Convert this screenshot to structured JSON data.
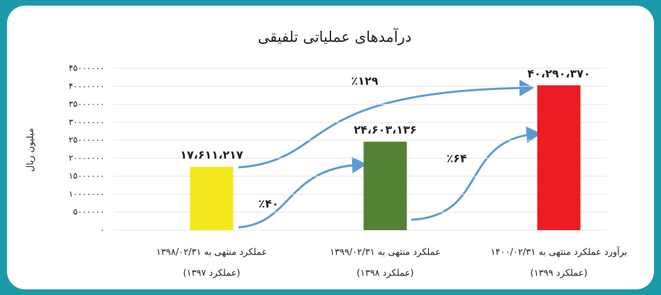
{
  "chart_data": {
    "type": "bar",
    "title": "درآمدهای عملیاتی تلفیقی",
    "y_label": "میلیون ریال",
    "categories": [
      "عملکرد منتهی به ۱۳۹۸/۰۲/۳۱",
      "عملکرد منتهی به ۱۳۹۹/۰۲/۳۱",
      "برآورد عملکرد منتهی به ۱۴۰۰/۰۲/۳۱"
    ],
    "category_notes": [
      "(عملکرد ۱۳۹۷)",
      "(عملکرد ۱۳۹۸)",
      "(عملکرد ۱۳۹۹)"
    ],
    "values": [
      17611217,
      24603136,
      40290370
    ],
    "value_labels": [
      "۱۷،۶۱۱،۲۱۷",
      "۲۴،۶۰۳،۱۳۶",
      "۴۰،۲۹۰،۳۷۰"
    ],
    "colors": [
      "#f2e81c",
      "#548235",
      "#ed1c24"
    ],
    "ylim": [
      0,
      45000000
    ],
    "yticks": [
      {
        "value": 0,
        "label": "۰"
      },
      {
        "value": 5000000,
        "label": "۵۰۰۰۰۰۰"
      },
      {
        "value": 10000000,
        "label": "۱۰۰۰۰۰۰۰"
      },
      {
        "value": 15000000,
        "label": "۱۵۰۰۰۰۰۰"
      },
      {
        "value": 20000000,
        "label": "۲۰۰۰۰۰۰۰"
      },
      {
        "value": 25000000,
        "label": "۲۵۰۰۰۰۰۰"
      },
      {
        "value": 30000000,
        "label": "۳۰۰۰۰۰۰۰"
      },
      {
        "value": 35000000,
        "label": "۳۵۰۰۰۰۰۰"
      },
      {
        "value": 40000000,
        "label": "۴۰۰۰۰۰۰۰"
      },
      {
        "value": 45000000,
        "label": "۴۵۰۰۰۰۰۰"
      }
    ],
    "grid": true,
    "annotations": [
      "٪۱۲۹",
      "٪۴۰",
      "٪۶۴"
    ]
  }
}
